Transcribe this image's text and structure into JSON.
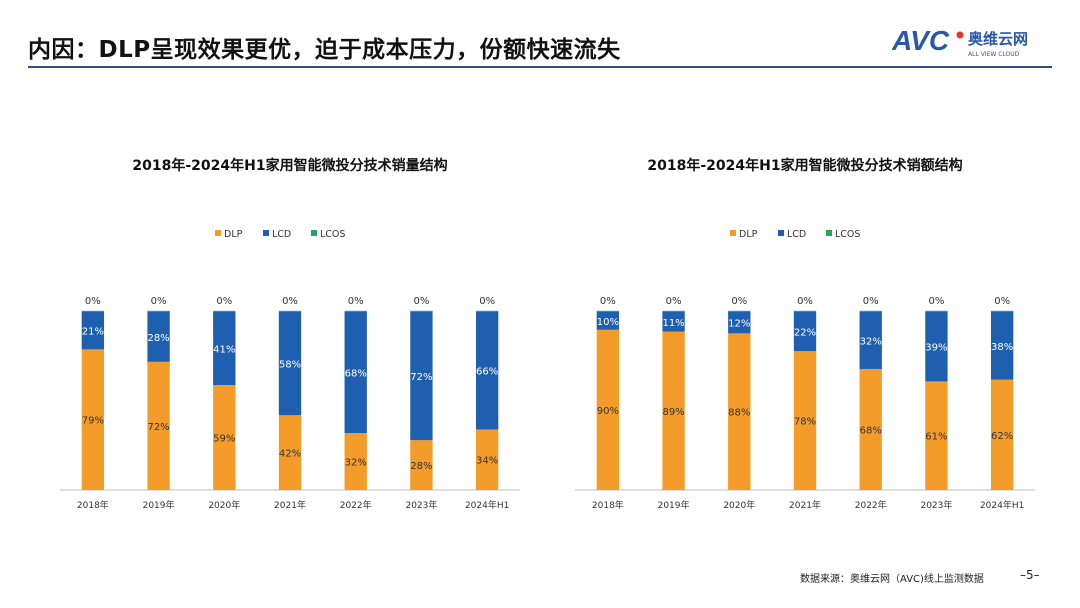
{
  "slide": {
    "title": "内因：DLP呈现效果更优，迫于成本压力，份额快速流失",
    "source": "数据来源：奥维云网（AVC)线上监测数据",
    "page": "–5–"
  },
  "logo": {
    "mark": "AVC",
    "name_cn": "奥维云网",
    "name_en": "ALL VIEW CLOUD",
    "color": "#2b57a7",
    "accent": "#e8322b"
  },
  "colors": {
    "DLP": "#f39c2a",
    "LCD": "#1f5fb0",
    "LCOS": "#27a35a",
    "axis": "#bfbfbf",
    "label": "#333333"
  },
  "chart_data": [
    {
      "type": "bar",
      "stacked": true,
      "percent": true,
      "title": "2018年-2024年H1家用智能微投分技术销量结构",
      "legend_position": "top",
      "categories": [
        "2018年",
        "2019年",
        "2020年",
        "2021年",
        "2022年",
        "2023年",
        "2024年H1"
      ],
      "series": [
        {
          "name": "DLP",
          "values": [
            79,
            72,
            59,
            42,
            32,
            28,
            34
          ]
        },
        {
          "name": "LCD",
          "values": [
            21,
            28,
            41,
            58,
            68,
            72,
            66
          ]
        },
        {
          "name": "LCOS",
          "values": [
            0,
            0,
            0,
            0,
            0,
            0,
            0
          ]
        }
      ],
      "labels": {
        "DLP": [
          "79%",
          "72%",
          "59%",
          "42%",
          "32%",
          "28%",
          "34%"
        ],
        "LCD": [
          "21%",
          "28%",
          "41%",
          "58%",
          "68%",
          "72%",
          "66%"
        ],
        "LCOS": [
          "0%",
          "0%",
          "0%",
          "0%",
          "0%",
          "0%",
          "0%"
        ]
      },
      "ylim": [
        0,
        100
      ],
      "grid": false
    },
    {
      "type": "bar",
      "stacked": true,
      "percent": true,
      "title": "2018年-2024年H1家用智能微投分技术销额结构",
      "legend_position": "top",
      "categories": [
        "2018年",
        "2019年",
        "2020年",
        "2021年",
        "2022年",
        "2023年",
        "2024年H1"
      ],
      "series": [
        {
          "name": "DLP",
          "values": [
            90,
            89,
            88,
            78,
            68,
            61,
            62
          ]
        },
        {
          "name": "LCD",
          "values": [
            10,
            11,
            12,
            22,
            32,
            39,
            38
          ]
        },
        {
          "name": "LCOS",
          "values": [
            0,
            0,
            0,
            0,
            0,
            0,
            0
          ]
        }
      ],
      "labels": {
        "DLP": [
          "90%",
          "89%",
          "88%",
          "78%",
          "68%",
          "61%",
          "62%"
        ],
        "LCD": [
          "10%",
          "11%",
          "12%",
          "22%",
          "32%",
          "39%",
          "38%"
        ],
        "LCOS": [
          "0%",
          "0%",
          "0%",
          "0%",
          "0%",
          "0%",
          "0%"
        ]
      },
      "ylim": [
        0,
        100
      ],
      "grid": false
    }
  ]
}
